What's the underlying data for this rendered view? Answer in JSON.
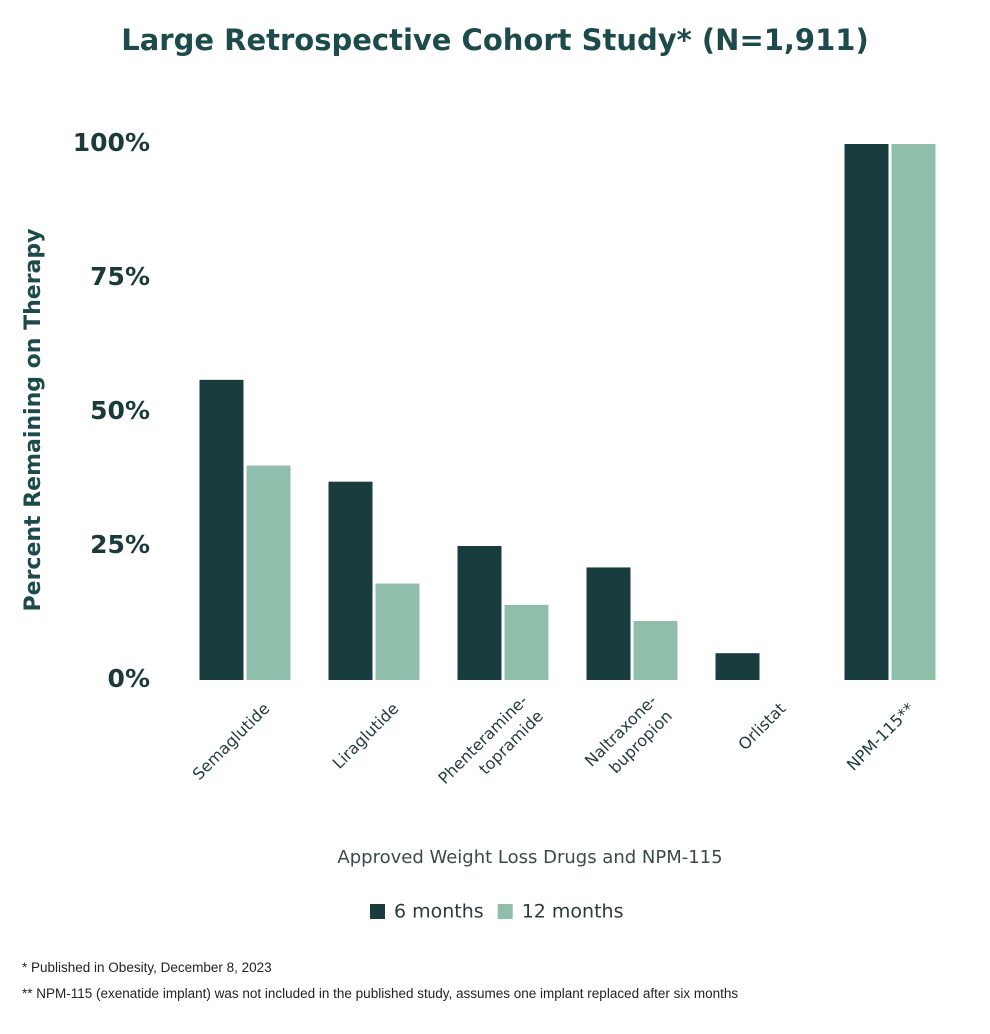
{
  "chart_data": {
    "type": "bar",
    "title": "Large Retrospective Cohort Study* (N=1,911)",
    "y_label": "Percent Remaining on Therapy",
    "x_label": "Approved Weight Loss Drugs and NPM-115",
    "categories": [
      "Semaglutide",
      "Liraglutide",
      "Phenteramine-\ntopramide",
      "Naltraxone-\nbupropion",
      "Orlistat",
      "NPM-115**"
    ],
    "series": [
      {
        "name": "6 months",
        "color": "#193c3f",
        "values": [
          56,
          37,
          25,
          21,
          5,
          100
        ]
      },
      {
        "name": "12 months",
        "color": "#8fbfab",
        "values": [
          40,
          18,
          14,
          11,
          null,
          100
        ]
      }
    ],
    "ylim": [
      0,
      100
    ],
    "yticks": [
      {
        "value": 0,
        "label": "0%"
      },
      {
        "value": 25,
        "label": "25%"
      },
      {
        "value": 50,
        "label": "50%"
      },
      {
        "value": 75,
        "label": "75%"
      },
      {
        "value": 100,
        "label": "100%"
      }
    ],
    "grid": false,
    "legend": "bottom",
    "footnotes": [
      "* Published in Obesity, December 8, 2023",
      "** NPM-115 (exenatide implant) was not included in the published study, assumes one implant replaced after six months"
    ]
  }
}
